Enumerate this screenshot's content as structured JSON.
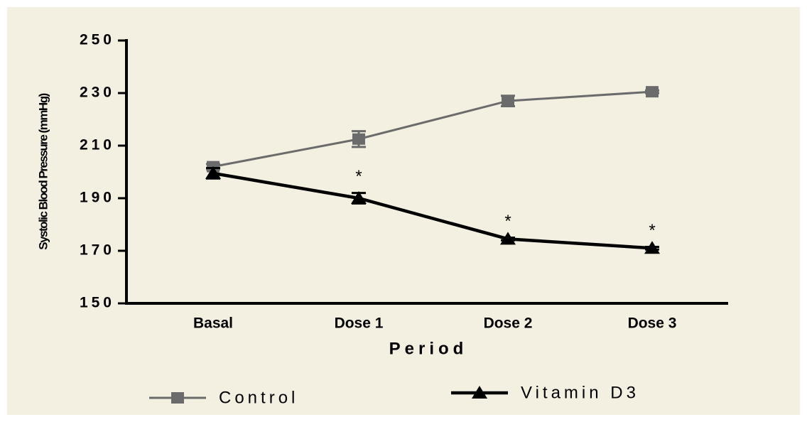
{
  "chart_data": {
    "type": "line",
    "y_label": "Systolic Blood Pressure (mmHg)",
    "x_label": "Period",
    "categories": [
      "Basal",
      "Dose 1",
      "Dose 2",
      "Dose 3"
    ],
    "series": [
      {
        "name": "Control",
        "color": "#6b6b6b",
        "marker": "square",
        "values": [
          202,
          212.5,
          227,
          230.5
        ],
        "errors": [
          1,
          3,
          2,
          0.5
        ]
      },
      {
        "name": "Vitamin D3",
        "color": "#000000",
        "marker": "triangle",
        "values": [
          199.5,
          190,
          174.5,
          171
        ],
        "errors": [
          2,
          2,
          0.5,
          0.5
        ]
      }
    ],
    "annotations": [
      null,
      "*",
      "*",
      "*"
    ],
    "ylim": [
      150,
      250
    ],
    "yticks": [
      150,
      170,
      190,
      210,
      230,
      250
    ],
    "grid": false,
    "legend": "bottom"
  }
}
